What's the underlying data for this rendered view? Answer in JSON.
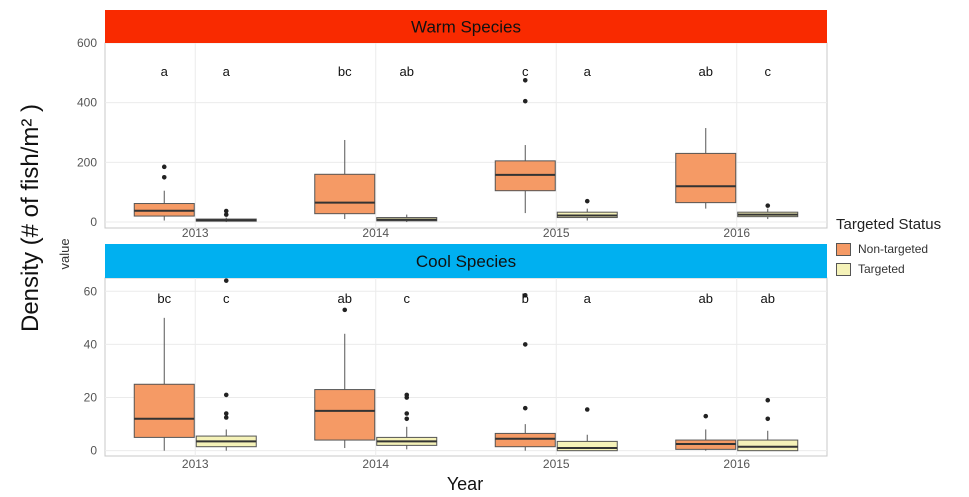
{
  "chart_data": {
    "type": "box",
    "ylabel": "Density (# of fish/m² )",
    "ylabel_small": "value",
    "xlabel": "Year",
    "legend": {
      "title": "Targeted Status",
      "position": "right",
      "items": [
        {
          "label": "Non-targeted",
          "color": "#f59a65"
        },
        {
          "label": "Targeted",
          "color": "#f5f2b8"
        }
      ]
    },
    "categories": [
      "2013",
      "2014",
      "2015",
      "2016"
    ],
    "grid": true,
    "panels": [
      {
        "title": "Warm Species",
        "title_color": "#f92a00",
        "ylim": [
          -20,
          600
        ],
        "yticks": [
          0,
          200,
          400,
          600
        ],
        "series": [
          {
            "status": "Non-targeted",
            "boxes": [
              {
                "year": "2013",
                "min": 5,
                "q1": 20,
                "median": 38,
                "q3": 62,
                "max": 105,
                "outliers": [
                  150,
                  185
                ],
                "letter": "a"
              },
              {
                "year": "2014",
                "min": 10,
                "q1": 28,
                "median": 65,
                "q3": 160,
                "max": 275,
                "outliers": [],
                "letter": "bc"
              },
              {
                "year": "2015",
                "min": 30,
                "q1": 105,
                "median": 158,
                "q3": 205,
                "max": 258,
                "outliers": [
                  405,
                  475
                ],
                "letter": "c"
              },
              {
                "year": "2016",
                "min": 45,
                "q1": 65,
                "median": 120,
                "q3": 230,
                "max": 315,
                "outliers": [],
                "letter": "ab"
              }
            ]
          },
          {
            "status": "Targeted",
            "boxes": [
              {
                "year": "2013",
                "min": 0,
                "q1": 3,
                "median": 6,
                "q3": 10,
                "max": 15,
                "outliers": [
                  25,
                  37
                ],
                "letter": "a"
              },
              {
                "year": "2014",
                "min": 0,
                "q1": 4,
                "median": 8,
                "q3": 15,
                "max": 25,
                "outliers": [],
                "letter": "ab"
              },
              {
                "year": "2015",
                "min": 5,
                "q1": 15,
                "median": 22,
                "q3": 33,
                "max": 45,
                "outliers": [
                  70
                ],
                "letter": "a"
              },
              {
                "year": "2016",
                "min": 10,
                "q1": 18,
                "median": 25,
                "q3": 33,
                "max": 45,
                "outliers": [
                  55
                ],
                "letter": "c"
              }
            ]
          }
        ]
      },
      {
        "title": "Cool Species",
        "title_color": "#00b0f0",
        "ylim": [
          -2,
          65
        ],
        "yticks": [
          0,
          20,
          40,
          60
        ],
        "series": [
          {
            "status": "Non-targeted",
            "boxes": [
              {
                "year": "2013",
                "min": 0,
                "q1": 5,
                "median": 12,
                "q3": 25,
                "max": 50,
                "outliers": [],
                "letter": "bc"
              },
              {
                "year": "2014",
                "min": 1,
                "q1": 4,
                "median": 15,
                "q3": 23,
                "max": 44,
                "outliers": [
                  53
                ],
                "letter": "ab"
              },
              {
                "year": "2015",
                "min": 0,
                "q1": 1.5,
                "median": 4.5,
                "q3": 6.5,
                "max": 10,
                "outliers": [
                  16,
                  40,
                  58.5
                ],
                "letter": "b"
              },
              {
                "year": "2016",
                "min": 0,
                "q1": 0.5,
                "median": 2.5,
                "q3": 4,
                "max": 8,
                "outliers": [
                  13
                ],
                "letter": "ab"
              }
            ]
          },
          {
            "status": "Targeted",
            "boxes": [
              {
                "year": "2013",
                "min": 0,
                "q1": 1.5,
                "median": 3.5,
                "q3": 5.5,
                "max": 8,
                "outliers": [
                  12.5,
                  14,
                  21,
                  64
                ],
                "letter": "c"
              },
              {
                "year": "2014",
                "min": 0.5,
                "q1": 2,
                "median": 3.5,
                "q3": 5,
                "max": 9,
                "outliers": [
                  12,
                  14,
                  20,
                  21
                ],
                "letter": "c"
              },
              {
                "year": "2015",
                "min": 0,
                "q1": 0,
                "median": 1,
                "q3": 3.5,
                "max": 6,
                "outliers": [
                  15.5
                ],
                "letter": "a"
              },
              {
                "year": "2016",
                "min": 0,
                "q1": 0,
                "median": 1.5,
                "q3": 4,
                "max": 7.5,
                "outliers": [
                  12,
                  19
                ],
                "letter": "ab"
              }
            ]
          }
        ]
      }
    ]
  }
}
